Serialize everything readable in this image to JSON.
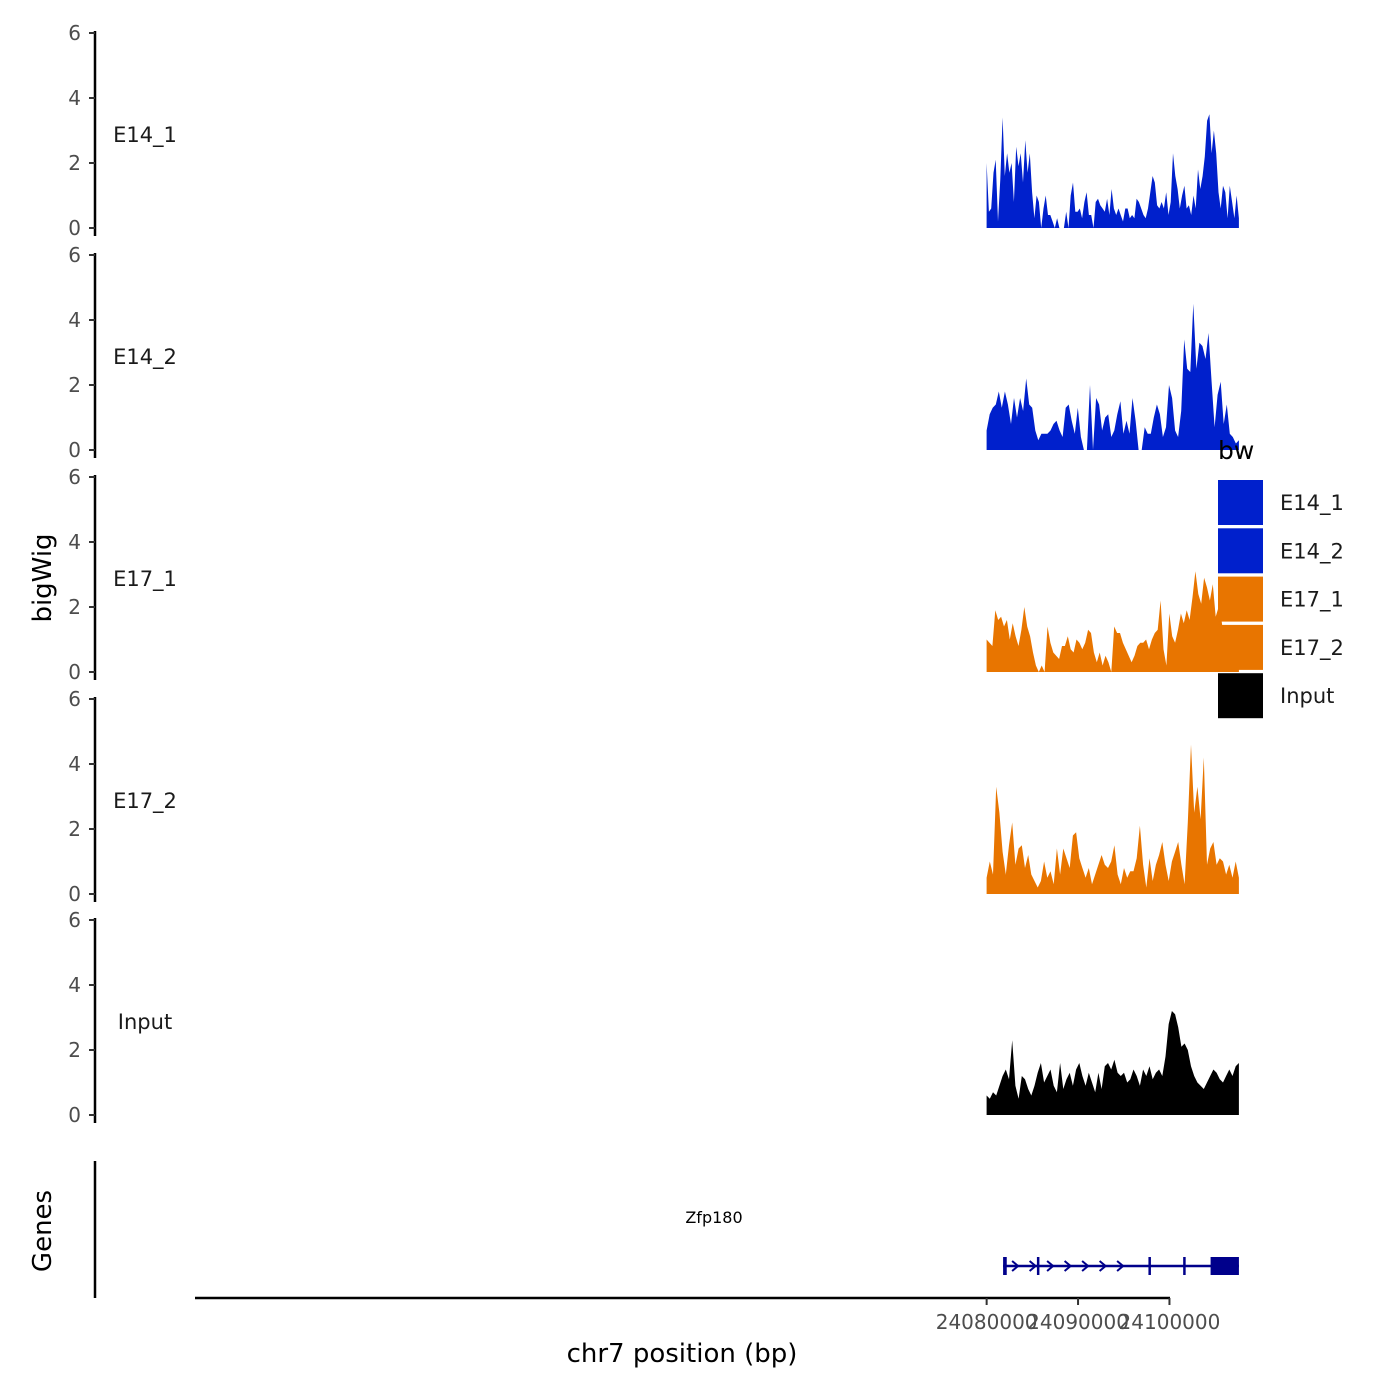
{
  "chart_data": {
    "type": "area",
    "ylabel": "bigWig",
    "xlabel": "chr7 position (bp)",
    "xlim": [
      23983000,
      24111000
    ],
    "x_ticks": [
      24080000,
      24090000,
      24100000
    ],
    "ylim": [
      0,
      6
    ],
    "y_ticks": [
      0,
      2,
      4,
      6
    ],
    "x_start": 24080000,
    "x_end": 24107600,
    "series": [
      {
        "name": "E14_1",
        "color": "#0020cc",
        "values": [
          2.0,
          0.5,
          0.6,
          1.7,
          2.1,
          0.2,
          1.5,
          3.4,
          1.6,
          2.3,
          1.7,
          2.0,
          0.8,
          2.5,
          1.9,
          2.3,
          1.4,
          2.7,
          1.7,
          2.3,
          1.1,
          0.3,
          1.0,
          0.8,
          0.0,
          0.6,
          1.0,
          0.4,
          0.4,
          0.2,
          0.0,
          0.3,
          0.0,
          0.0,
          0.0,
          0.5,
          0.0,
          1.0,
          1.4,
          0.5,
          0.5,
          0.6,
          0.3,
          0.8,
          1.1,
          0.4,
          0.4,
          0.0,
          0.8,
          0.9,
          0.7,
          0.6,
          0.5,
          0.9,
          0.4,
          1.2,
          0.6,
          0.4,
          0.6,
          0.4,
          0.2,
          0.6,
          0.6,
          0.3,
          0.4,
          0.3,
          0.9,
          0.8,
          0.6,
          0.4,
          0.3,
          0.6,
          1.1,
          1.6,
          1.4,
          0.7,
          0.6,
          0.8,
          0.6,
          1.1,
          0.4,
          0.8,
          2.3,
          1.6,
          1.2,
          0.6,
          1.0,
          1.3,
          0.6,
          0.7,
          0.4,
          1.0,
          0.6,
          1.8,
          1.2,
          1.6,
          2.2,
          3.3,
          3.5,
          2.3,
          3.0,
          2.3,
          1.1,
          0.6,
          1.3,
          1.1,
          0.3,
          1.3,
          0.8,
          0.3,
          1.0,
          0.3
        ],
        "data_labels": [
          "E14_1"
        ]
      },
      {
        "name": "E14_2",
        "color": "#0020cc",
        "values": [
          0.6,
          1.1,
          1.3,
          1.4,
          1.8,
          1.3,
          1.8,
          1.4,
          0.8,
          1.6,
          1.0,
          1.6,
          1.2,
          2.2,
          1.4,
          1.3,
          0.6,
          0.3,
          0.5,
          0.5,
          0.5,
          0.6,
          0.8,
          0.9,
          0.6,
          0.4,
          1.3,
          1.4,
          0.9,
          0.5,
          1.3,
          0.4,
          0.0,
          0.0,
          2.0,
          0.0,
          1.6,
          1.4,
          0.6,
          1.0,
          1.1,
          0.4,
          0.6,
          1.1,
          1.5,
          0.5,
          0.9,
          0.5,
          1.6,
          0.9,
          0.0,
          0.0,
          0.7,
          0.5,
          0.5,
          1.0,
          1.4,
          1.1,
          0.4,
          0.7,
          2.0,
          1.6,
          0.6,
          0.4,
          1.2,
          3.4,
          2.5,
          2.4,
          4.5,
          2.5,
          3.3,
          3.2,
          2.8,
          3.6,
          2.1,
          0.7,
          1.7,
          2.1,
          0.8,
          1.4,
          0.5,
          0.4,
          0.2,
          0.3
        ],
        "data_labels": [
          "E14_2"
        ]
      },
      {
        "name": "E17_1",
        "color": "#e87500",
        "values": [
          1.0,
          0.9,
          0.8,
          1.9,
          1.6,
          1.7,
          1.4,
          1.6,
          1.0,
          1.5,
          1.1,
          0.8,
          1.3,
          2.0,
          1.4,
          1.1,
          0.6,
          0.2,
          0.0,
          0.2,
          0.0,
          1.4,
          0.9,
          0.6,
          0.5,
          0.4,
          0.8,
          0.8,
          1.1,
          0.7,
          0.6,
          1.0,
          0.9,
          0.7,
          0.9,
          1.3,
          1.2,
          0.6,
          0.3,
          0.6,
          0.2,
          0.5,
          0.3,
          0.0,
          1.4,
          1.2,
          1.2,
          0.9,
          0.7,
          0.5,
          0.3,
          0.5,
          0.8,
          0.9,
          0.9,
          1.0,
          0.7,
          1.0,
          1.2,
          1.3,
          2.2,
          0.7,
          0.2,
          1.8,
          1.1,
          0.9,
          1.3,
          1.8,
          1.5,
          1.9,
          1.6,
          2.3,
          3.1,
          2.4,
          2.1,
          2.9,
          2.6,
          2.2,
          2.7,
          1.7,
          2.0,
          1.6,
          0.9,
          0.8,
          1.4,
          1.0,
          0.6,
          0.3
        ],
        "data_labels": [
          "E17_1"
        ]
      },
      {
        "name": "E17_2",
        "color": "#e87500",
        "values": [
          0.5,
          1.0,
          0.6,
          3.3,
          2.5,
          1.3,
          0.6,
          1.5,
          2.2,
          0.9,
          1.4,
          1.5,
          0.8,
          1.2,
          0.6,
          0.4,
          0.2,
          0.4,
          1.0,
          0.5,
          0.7,
          0.3,
          1.4,
          0.6,
          1.4,
          1.1,
          0.8,
          1.8,
          1.9,
          1.1,
          0.8,
          0.5,
          0.8,
          0.3,
          0.6,
          0.9,
          1.2,
          0.9,
          0.8,
          1.0,
          1.5,
          0.6,
          0.3,
          0.8,
          0.5,
          0.7,
          0.7,
          1.1,
          2.1,
          0.9,
          0.2,
          1.1,
          0.4,
          0.9,
          1.2,
          1.6,
          0.9,
          0.4,
          1.0,
          1.3,
          1.6,
          0.9,
          0.3,
          2.2,
          4.6,
          2.5,
          3.3,
          2.3,
          4.2,
          0.9,
          1.4,
          1.6,
          0.9,
          1.1,
          1.0,
          0.6,
          0.9,
          0.5,
          1.0,
          0.5
        ],
        "data_labels": [
          "E17_2"
        ]
      },
      {
        "name": "Input",
        "color": "#000000",
        "values": [
          0.6,
          0.5,
          0.7,
          0.6,
          0.9,
          1.2,
          1.4,
          1.1,
          2.3,
          0.9,
          0.5,
          1.2,
          1.1,
          0.8,
          0.6,
          0.9,
          1.3,
          1.6,
          1.0,
          1.2,
          1.4,
          0.9,
          0.7,
          1.6,
          0.8,
          1.1,
          1.3,
          0.9,
          1.4,
          1.6,
          1.2,
          0.9,
          1.3,
          1.0,
          0.7,
          1.3,
          0.8,
          1.5,
          1.6,
          1.4,
          1.7,
          1.3,
          1.2,
          1.3,
          1.0,
          1.1,
          1.4,
          1.2,
          0.9,
          1.4,
          1.2,
          1.5,
          1.1,
          1.3,
          1.4,
          1.2,
          1.8,
          2.8,
          3.2,
          3.1,
          2.7,
          2.1,
          2.2,
          2.0,
          1.5,
          1.2,
          1.0,
          0.9,
          0.8,
          1.0,
          1.2,
          1.4,
          1.3,
          1.1,
          1.0,
          1.2,
          1.4,
          1.2,
          1.5,
          1.6
        ],
        "data_labels": [
          "Input"
        ]
      }
    ],
    "genes_panel": {
      "ylabel": "Genes",
      "gene_name": "Zfp180",
      "color": "#00008b",
      "start": 24081800,
      "end": 24107600,
      "strand": "+",
      "exons": [
        [
          24081800,
          24082200
        ],
        [
          24085500,
          24085600
        ],
        [
          24097700,
          24097800
        ],
        [
          24101500,
          24101600
        ],
        [
          24104500,
          24107600
        ]
      ]
    },
    "legend": {
      "title": "bw",
      "position": "right",
      "entries": [
        {
          "label": "E14_1",
          "color": "#0020cc"
        },
        {
          "label": "E14_2",
          "color": "#0020cc"
        },
        {
          "label": "E17_1",
          "color": "#e87500"
        },
        {
          "label": "E17_2",
          "color": "#e87500"
        },
        {
          "label": "Input",
          "color": "#000000"
        }
      ]
    }
  }
}
